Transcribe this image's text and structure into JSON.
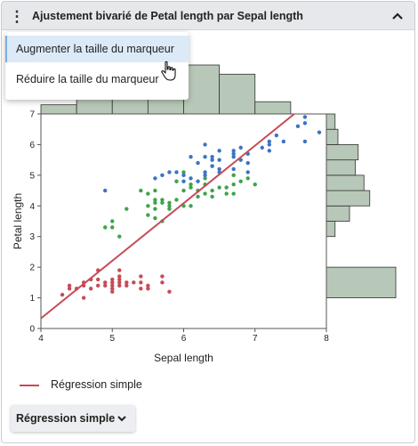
{
  "header": {
    "title": "Ajustement bivarié de Petal length par Sepal length",
    "menu_icon": "kebab-icon",
    "collapse_icon": "chevron-up-icon"
  },
  "menu": {
    "items": [
      "Augmenter la taille du marqueur",
      "Réduire la taille du marqueur"
    ],
    "highlighted_index": 0
  },
  "legend": {
    "label": "Régression simple",
    "color": "#c74b57"
  },
  "fit_button": {
    "label": "Régression simple",
    "icon": "chevron-down-icon"
  },
  "chart_data": {
    "type": "scatter",
    "xlabel": "Sepal length",
    "ylabel": "Petal length",
    "xlim": [
      4,
      8
    ],
    "ylim": [
      0,
      7
    ],
    "x_ticks": [
      4,
      5,
      6,
      7,
      8
    ],
    "y_ticks": [
      0,
      1,
      2,
      3,
      4,
      5,
      6,
      7
    ],
    "colors": {
      "red": "#c74b57",
      "green": "#3fa34d",
      "blue": "#3c74c6"
    },
    "series": [
      {
        "color": "red",
        "points": [
          [
            4.3,
            1.1
          ],
          [
            4.4,
            1.3
          ],
          [
            4.4,
            1.4
          ],
          [
            4.5,
            1.3
          ],
          [
            4.6,
            1.0
          ],
          [
            4.6,
            1.4
          ],
          [
            4.6,
            1.5
          ],
          [
            4.7,
            1.3
          ],
          [
            4.7,
            1.6
          ],
          [
            4.8,
            1.4
          ],
          [
            4.8,
            1.6
          ],
          [
            4.8,
            1.9
          ],
          [
            4.9,
            1.4
          ],
          [
            4.9,
            1.5
          ],
          [
            5.0,
            1.2
          ],
          [
            5.0,
            1.3
          ],
          [
            5.0,
            1.4
          ],
          [
            5.0,
            1.5
          ],
          [
            5.0,
            1.6
          ],
          [
            5.1,
            1.4
          ],
          [
            5.1,
            1.5
          ],
          [
            5.1,
            1.6
          ],
          [
            5.1,
            1.7
          ],
          [
            5.1,
            1.9
          ],
          [
            5.2,
            1.4
          ],
          [
            5.2,
            1.5
          ],
          [
            5.3,
            1.5
          ],
          [
            5.4,
            1.3
          ],
          [
            5.4,
            1.5
          ],
          [
            5.4,
            1.7
          ],
          [
            5.5,
            1.3
          ],
          [
            5.5,
            1.4
          ],
          [
            5.7,
            1.5
          ],
          [
            5.7,
            1.7
          ],
          [
            5.8,
            1.2
          ]
        ]
      },
      {
        "color": "green",
        "points": [
          [
            4.9,
            3.3
          ],
          [
            5.0,
            3.3
          ],
          [
            5.0,
            3.5
          ],
          [
            5.1,
            3.0
          ],
          [
            5.2,
            3.9
          ],
          [
            5.4,
            4.5
          ],
          [
            5.5,
            3.7
          ],
          [
            5.5,
            4.0
          ],
          [
            5.5,
            4.4
          ],
          [
            5.6,
            3.6
          ],
          [
            5.6,
            3.9
          ],
          [
            5.6,
            4.1
          ],
          [
            5.6,
            4.2
          ],
          [
            5.6,
            4.5
          ],
          [
            5.7,
            3.5
          ],
          [
            5.7,
            4.1
          ],
          [
            5.7,
            4.2
          ],
          [
            5.8,
            3.9
          ],
          [
            5.8,
            4.0
          ],
          [
            5.8,
            4.1
          ],
          [
            5.9,
            4.2
          ],
          [
            5.9,
            4.8
          ],
          [
            6.0,
            4.0
          ],
          [
            6.0,
            4.5
          ],
          [
            6.0,
            5.1
          ],
          [
            6.1,
            4.0
          ],
          [
            6.1,
            4.6
          ],
          [
            6.1,
            4.7
          ],
          [
            6.2,
            4.3
          ],
          [
            6.2,
            4.5
          ],
          [
            6.3,
            4.4
          ],
          [
            6.3,
            4.7
          ],
          [
            6.3,
            4.9
          ],
          [
            6.4,
            4.3
          ],
          [
            6.4,
            4.5
          ],
          [
            6.5,
            4.6
          ],
          [
            6.6,
            4.4
          ],
          [
            6.6,
            4.6
          ],
          [
            6.7,
            4.4
          ],
          [
            6.7,
            4.7
          ],
          [
            6.7,
            5.0
          ],
          [
            6.8,
            4.8
          ],
          [
            6.9,
            4.9
          ],
          [
            7.0,
            4.7
          ]
        ]
      },
      {
        "color": "blue",
        "points": [
          [
            4.9,
            4.5
          ],
          [
            5.6,
            4.9
          ],
          [
            5.7,
            5.0
          ],
          [
            5.8,
            5.1
          ],
          [
            5.9,
            5.1
          ],
          [
            6.0,
            4.8
          ],
          [
            6.0,
            5.0
          ],
          [
            6.1,
            5.6
          ],
          [
            6.1,
            4.9
          ],
          [
            6.2,
            5.4
          ],
          [
            6.2,
            4.8
          ],
          [
            6.3,
            6.0
          ],
          [
            6.3,
            5.6
          ],
          [
            6.3,
            5.1
          ],
          [
            6.3,
            5.0
          ],
          [
            6.4,
            5.3
          ],
          [
            6.4,
            5.5
          ],
          [
            6.4,
            5.6
          ],
          [
            6.4,
            5.3
          ],
          [
            6.5,
            5.8
          ],
          [
            6.5,
            5.5
          ],
          [
            6.5,
            5.1
          ],
          [
            6.5,
            5.2
          ],
          [
            6.7,
            5.8
          ],
          [
            6.7,
            5.7
          ],
          [
            6.7,
            5.2
          ],
          [
            6.7,
            5.6
          ],
          [
            6.8,
            5.5
          ],
          [
            6.8,
            5.9
          ],
          [
            6.9,
            5.4
          ],
          [
            6.9,
            5.1
          ],
          [
            6.9,
            5.7
          ],
          [
            7.1,
            5.9
          ],
          [
            7.2,
            6.1
          ],
          [
            7.2,
            5.8
          ],
          [
            7.2,
            6.0
          ],
          [
            7.3,
            6.3
          ],
          [
            7.4,
            6.1
          ],
          [
            7.6,
            6.6
          ],
          [
            7.7,
            6.9
          ],
          [
            7.7,
            6.7
          ],
          [
            7.7,
            6.1
          ],
          [
            7.9,
            6.4
          ]
        ]
      }
    ],
    "regression": {
      "x": [
        4,
        7.55
      ],
      "y": [
        0.33,
        7.0
      ]
    },
    "x_histogram": {
      "bins": [
        [
          4,
          4.5,
          6
        ],
        [
          4.5,
          5,
          22
        ],
        [
          5,
          5.5,
          24
        ],
        [
          5.5,
          6,
          26
        ],
        [
          6,
          6.5,
          32
        ],
        [
          6.5,
          7,
          26
        ],
        [
          7,
          7.5,
          8
        ]
      ],
      "max": 32
    },
    "y_histogram": {
      "bins": [
        [
          1,
          2,
          48
        ],
        [
          3,
          3.5,
          6
        ],
        [
          3.5,
          4,
          16
        ],
        [
          4,
          4.5,
          30
        ],
        [
          4.5,
          5,
          26
        ],
        [
          5,
          5.5,
          20
        ],
        [
          5.5,
          6,
          22
        ],
        [
          6,
          6.5,
          8
        ],
        [
          6.5,
          7,
          6
        ]
      ],
      "max": 48
    }
  }
}
